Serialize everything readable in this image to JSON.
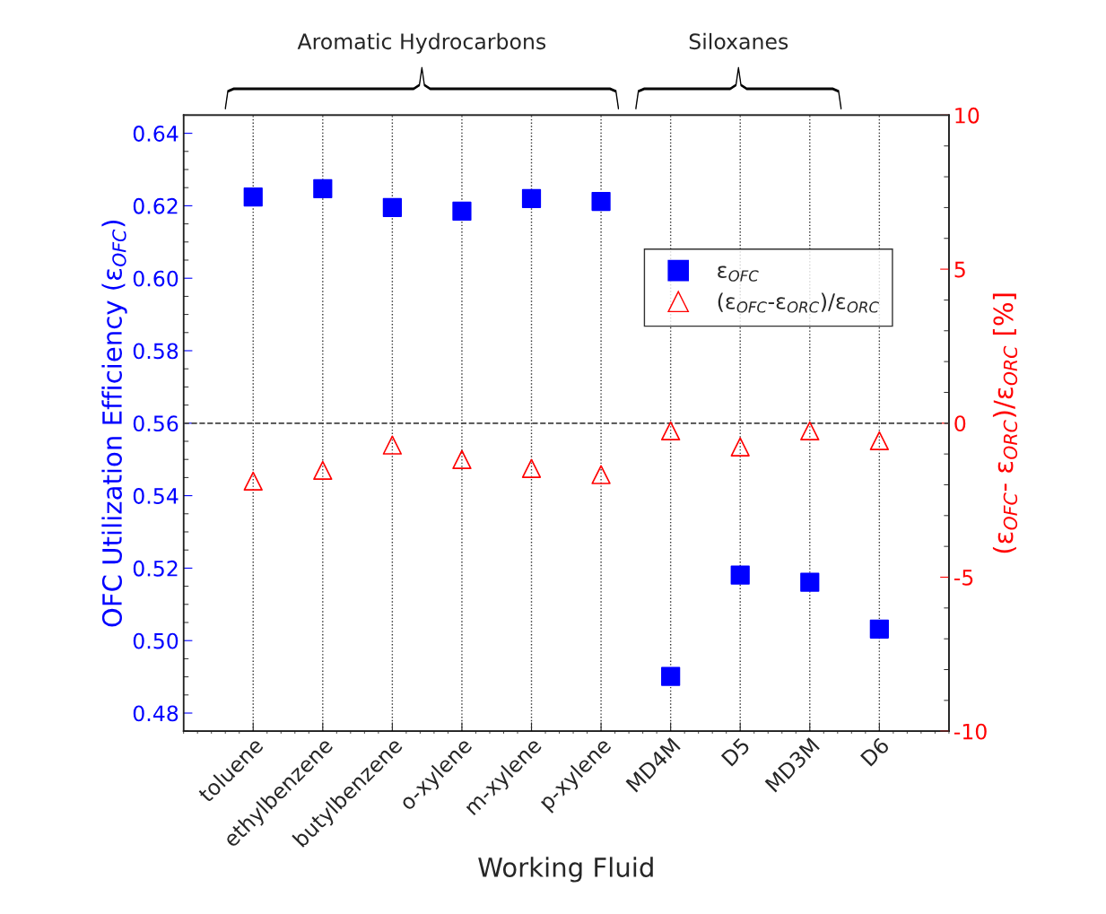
{
  "chart_data": {
    "type": "scatter",
    "xlabel": "Working Fluid",
    "ylabel": "OFC Utilization Efficiency (ε$_{OFC}$)",
    "y2label": "(ε$_{OFC}$- ε$_{ORC}$)/ε$_{ORC}$ [%]",
    "categories": [
      "toluene",
      "ethylbenzene",
      "butylbenzene",
      "o-xylene",
      "m-xylene",
      "p-xylene",
      "MD4M",
      "D5",
      "MD3M",
      "D6"
    ],
    "series": [
      {
        "name": "ε$_{OFC}$",
        "color": "#0000ff",
        "marker": "square",
        "values": [
          0.6224,
          0.6247,
          0.6195,
          0.6185,
          0.622,
          0.6212,
          0.4901,
          0.5181,
          0.5161,
          0.5032
        ]
      },
      {
        "name": "(ε$_{OFC}$-ε$_{ORC}$)/ε$_{ORC}$",
        "color": "#ff0000",
        "marker": "triangle",
        "axis": "y2",
        "values": [
          -1.88,
          -1.53,
          -0.71,
          -1.18,
          -1.47,
          -1.67,
          -0.25,
          -0.77,
          -0.25,
          -0.57
        ]
      }
    ],
    "ylim": [
      0.475,
      0.645
    ],
    "yticks": [
      {
        "value": 0.48,
        "label": "0.48"
      },
      {
        "value": 0.5,
        "label": "0.50"
      },
      {
        "value": 0.52,
        "label": "0.52"
      },
      {
        "value": 0.54,
        "label": "0.54"
      },
      {
        "value": 0.56,
        "label": "0.56"
      },
      {
        "value": 0.58,
        "label": "0.58"
      },
      {
        "value": 0.6,
        "label": "0.60"
      },
      {
        "value": 0.62,
        "label": "0.62"
      },
      {
        "value": 0.64,
        "label": "0.64"
      }
    ],
    "y2lim": [
      -10,
      10
    ],
    "y2ticks": [
      -10,
      -5,
      0,
      5,
      10
    ],
    "ref_lines": [
      {
        "axis": "y2",
        "value": 0,
        "color": "#444444",
        "line_style": "dashed"
      }
    ],
    "grid": "x",
    "legend": "right",
    "annotations": [
      "Aromatic Hydrocarbons",
      "Siloxanes"
    ]
  }
}
